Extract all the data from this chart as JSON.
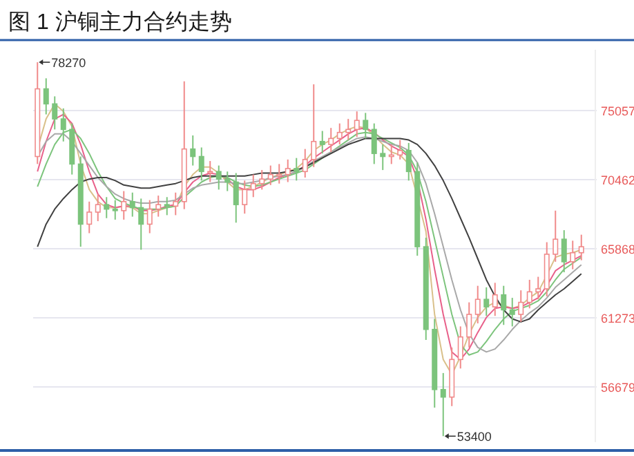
{
  "chart_data": {
    "type": "candlestick",
    "title": "图 1  沪铜主力合约走势",
    "categories": [
      null,
      null,
      null,
      null,
      null,
      null,
      null,
      null,
      null,
      null,
      null,
      null,
      null,
      null,
      null,
      null,
      null,
      null,
      null,
      null,
      null,
      null,
      null,
      null,
      null,
      null,
      null,
      null,
      null,
      null,
      null,
      null,
      null,
      null,
      null,
      null,
      null,
      null,
      null,
      null,
      null,
      null,
      null,
      null,
      null,
      null,
      null,
      null,
      null,
      null,
      null,
      null,
      null,
      null,
      null,
      null,
      null,
      null,
      null,
      null,
      null,
      null,
      null,
      null
    ],
    "ohlc": [
      [
        72000,
        78270,
        71500,
        76500
      ],
      [
        76500,
        77200,
        74800,
        75500
      ],
      [
        75500,
        76000,
        73800,
        74500
      ],
      [
        74500,
        75200,
        73000,
        73800
      ],
      [
        73800,
        74200,
        70800,
        71500
      ],
      [
        71500,
        72000,
        66000,
        67500
      ],
      [
        67500,
        69000,
        66900,
        68300
      ],
      [
        68300,
        69500,
        67700,
        68800
      ],
      [
        68800,
        69300,
        67900,
        68500
      ],
      [
        68500,
        69100,
        67800,
        68400
      ],
      [
        68400,
        69700,
        67800,
        69000
      ],
      [
        69000,
        69600,
        68000,
        68600
      ],
      [
        68600,
        69200,
        65800,
        67500
      ],
      [
        67500,
        69100,
        66900,
        68500
      ],
      [
        68500,
        69400,
        68000,
        68800
      ],
      [
        68800,
        69300,
        68100,
        68700
      ],
      [
        68700,
        69600,
        68100,
        69000
      ],
      [
        69000,
        77000,
        68500,
        72500
      ],
      [
        72500,
        73400,
        71400,
        72000
      ],
      [
        72000,
        72600,
        70400,
        71000
      ],
      [
        71000,
        71700,
        70300,
        71000
      ],
      [
        71000,
        71400,
        69800,
        70500
      ],
      [
        70500,
        71000,
        69700,
        70300
      ],
      [
        70300,
        70900,
        67600,
        68800
      ],
      [
        68800,
        70400,
        68200,
        69800
      ],
      [
        69800,
        70800,
        69300,
        70200
      ],
      [
        70200,
        71100,
        69800,
        70500
      ],
      [
        70500,
        71400,
        70100,
        70800
      ],
      [
        70800,
        71500,
        70200,
        70800
      ],
      [
        70800,
        71800,
        70300,
        71200
      ],
      [
        71200,
        71900,
        70400,
        71000
      ],
      [
        71000,
        72500,
        70600,
        71800
      ],
      [
        71800,
        76800,
        71300,
        73000
      ],
      [
        73000,
        73700,
        72200,
        72800
      ],
      [
        72800,
        73900,
        72300,
        73200
      ],
      [
        73200,
        74200,
        72800,
        73600
      ],
      [
        73600,
        74500,
        73100,
        73800
      ],
      [
        73800,
        75000,
        73300,
        74400
      ],
      [
        74400,
        74900,
        73200,
        73800
      ],
      [
        73800,
        74200,
        71500,
        72200
      ],
      [
        72200,
        72800,
        71100,
        72000
      ],
      [
        72000,
        72800,
        71500,
        72100
      ],
      [
        72100,
        73100,
        71800,
        72400
      ],
      [
        72400,
        72900,
        70400,
        71000
      ],
      [
        71000,
        71600,
        65400,
        66000
      ],
      [
        66000,
        66600,
        59800,
        60500
      ],
      [
        60500,
        61200,
        55300,
        56500
      ],
      [
        56500,
        57600,
        53400,
        56000
      ],
      [
        56000,
        59300,
        55400,
        58500
      ],
      [
        58500,
        60700,
        57900,
        60000
      ],
      [
        60000,
        62300,
        59300,
        61500
      ],
      [
        61500,
        63400,
        60900,
        62500
      ],
      [
        62500,
        63300,
        61400,
        62000
      ],
      [
        62000,
        63600,
        61400,
        62800
      ],
      [
        62800,
        63400,
        60800,
        61800
      ],
      [
        61800,
        62600,
        60700,
        61500
      ],
      [
        61500,
        63100,
        61000,
        62300
      ],
      [
        62300,
        63800,
        61900,
        63000
      ],
      [
        63000,
        64000,
        62500,
        63200
      ],
      [
        63200,
        66300,
        62700,
        65500
      ],
      [
        65500,
        68400,
        65000,
        66500
      ],
      [
        66500,
        67100,
        64300,
        65000
      ],
      [
        65000,
        66400,
        64500,
        65600
      ],
      [
        65600,
        66800,
        65100,
        66000
      ]
    ],
    "series": [
      {
        "type": "line",
        "color": "#d9c08a",
        "values": [
          72500,
          74500,
          75500,
          75000,
          74000,
          71500,
          69800,
          69000,
          68600,
          68600,
          68700,
          68600,
          68200,
          68200,
          68400,
          68600,
          68700,
          70000,
          70800,
          71300,
          71300,
          70900,
          70300,
          69800,
          69800,
          70000,
          70300,
          70600,
          70800,
          71000,
          71200,
          71700,
          72400,
          72800,
          73100,
          73500,
          73800,
          74000,
          73900,
          73400,
          72800,
          72300,
          72100,
          71500,
          69300,
          67000,
          61500,
          58500,
          57500,
          58700,
          60200,
          61300,
          62000,
          62300,
          62100,
          61900,
          62100,
          62600,
          63000,
          64100,
          65300,
          65500,
          65600,
          65800
        ]
      },
      {
        "type": "line",
        "color": "#e8608a",
        "values": [
          71000,
          73000,
          74500,
          74800,
          74200,
          72800,
          71000,
          69500,
          68800,
          68600,
          68700,
          68700,
          68400,
          68400,
          68500,
          68700,
          68800,
          69600,
          70300,
          70700,
          70900,
          70800,
          70500,
          70000,
          69800,
          69800,
          70000,
          70300,
          70600,
          70800,
          71000,
          71400,
          71900,
          72300,
          72700,
          73100,
          73500,
          73800,
          73900,
          73600,
          73100,
          72700,
          72400,
          72000,
          70500,
          67800,
          64500,
          61500,
          59000,
          58500,
          59200,
          60300,
          61300,
          61900,
          62000,
          61900,
          62000,
          62300,
          62600,
          63400,
          64400,
          64800,
          65100,
          65400
        ]
      },
      {
        "type": "line",
        "color": "#7cc47c",
        "values": [
          70000,
          71500,
          72800,
          73600,
          73800,
          73200,
          72200,
          71000,
          70000,
          69200,
          68900,
          68700,
          68500,
          68500,
          68500,
          68600,
          68700,
          69300,
          69800,
          70300,
          70600,
          70700,
          70600,
          70300,
          70100,
          70000,
          70100,
          70300,
          70500,
          70700,
          70900,
          71100,
          71500,
          71900,
          72300,
          72700,
          73100,
          73500,
          73600,
          73500,
          73200,
          72900,
          72600,
          72100,
          71000,
          69000,
          66500,
          64000,
          61500,
          59500,
          58800,
          59000,
          59700,
          60500,
          61200,
          61700,
          61900,
          62100,
          62400,
          63000,
          63800,
          64500,
          64900,
          65300
        ]
      },
      {
        "type": "line",
        "color": "#a8a8a8",
        "values": [
          72000,
          73000,
          73500,
          73500,
          73000,
          72200,
          71400,
          70600,
          70000,
          69500,
          69200,
          69000,
          68900,
          68900,
          69000,
          69000,
          69100,
          69500,
          69900,
          70100,
          70200,
          70300,
          70300,
          70200,
          70200,
          70300,
          70400,
          70600,
          70700,
          70800,
          71000,
          71300,
          71700,
          72000,
          72300,
          72600,
          72900,
          73200,
          73300,
          73200,
          73000,
          72800,
          72700,
          72400,
          71600,
          70200,
          68200,
          66000,
          63800,
          61800,
          60200,
          59300,
          59000,
          59200,
          59800,
          60500,
          61100,
          61600,
          62000,
          62600,
          63300,
          63800,
          64300,
          64800
        ]
      },
      {
        "type": "line",
        "color": "#404040",
        "values": [
          66000,
          67500,
          68500,
          69200,
          69800,
          70300,
          70500,
          70600,
          70600,
          70400,
          70100,
          70000,
          69900,
          69900,
          70000,
          70100,
          70200,
          70400,
          70600,
          70700,
          70700,
          70700,
          70700,
          70700,
          70700,
          70800,
          70900,
          70900,
          70900,
          71000,
          71100,
          71300,
          71600,
          71900,
          72200,
          72500,
          72800,
          73000,
          73200,
          73200,
          73200,
          73200,
          73200,
          73100,
          72800,
          72200,
          71400,
          70400,
          69200,
          67900,
          66600,
          65200,
          63800,
          62700,
          61800,
          61200,
          61000,
          61200,
          61800,
          62300,
          62800,
          63200,
          63700,
          64200
        ]
      }
    ],
    "ylim": [
      53000,
      79100
    ],
    "yticks": [
      56679,
      61273,
      65868,
      70462,
      75057
    ],
    "grid": "y",
    "annotations": [
      "78270",
      "53400"
    ]
  }
}
